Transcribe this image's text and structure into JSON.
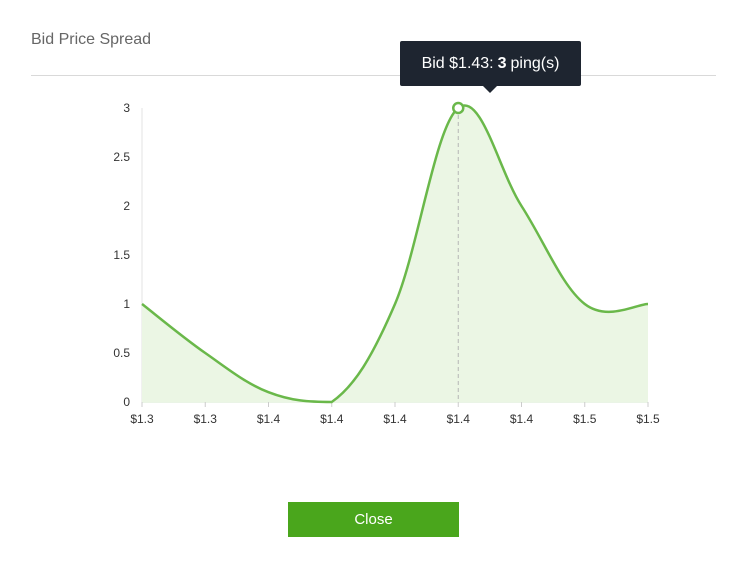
{
  "modal": {
    "title": "Bid Price Spread",
    "close_label": "Close"
  },
  "tooltip": {
    "prefix": "Bid",
    "price": "$1.43:",
    "count": "3",
    "suffix": "ping(s)"
  },
  "colors": {
    "line": "#6ab84a",
    "fill": "#ebf6e4",
    "button": "#4aa61c",
    "tooltip_bg": "#1e2530"
  },
  "chart_data": {
    "type": "area",
    "title": "Bid Price Spread",
    "xlabel": "",
    "ylabel": "",
    "categories": [
      "$1.3",
      "$1.3",
      "$1.4",
      "$1.4",
      "$1.4",
      "$1.4",
      "$1.4",
      "$1.5",
      "$1.5"
    ],
    "values": [
      1,
      0.5,
      0.1,
      0,
      1,
      3,
      2,
      1,
      1
    ],
    "y_ticks": [
      "0",
      "0.5",
      "1",
      "1.5",
      "2",
      "2.5",
      "3"
    ],
    "ylim": [
      0,
      3
    ],
    "grid": false,
    "highlight": {
      "category": "$1.43",
      "value": 3
    }
  }
}
